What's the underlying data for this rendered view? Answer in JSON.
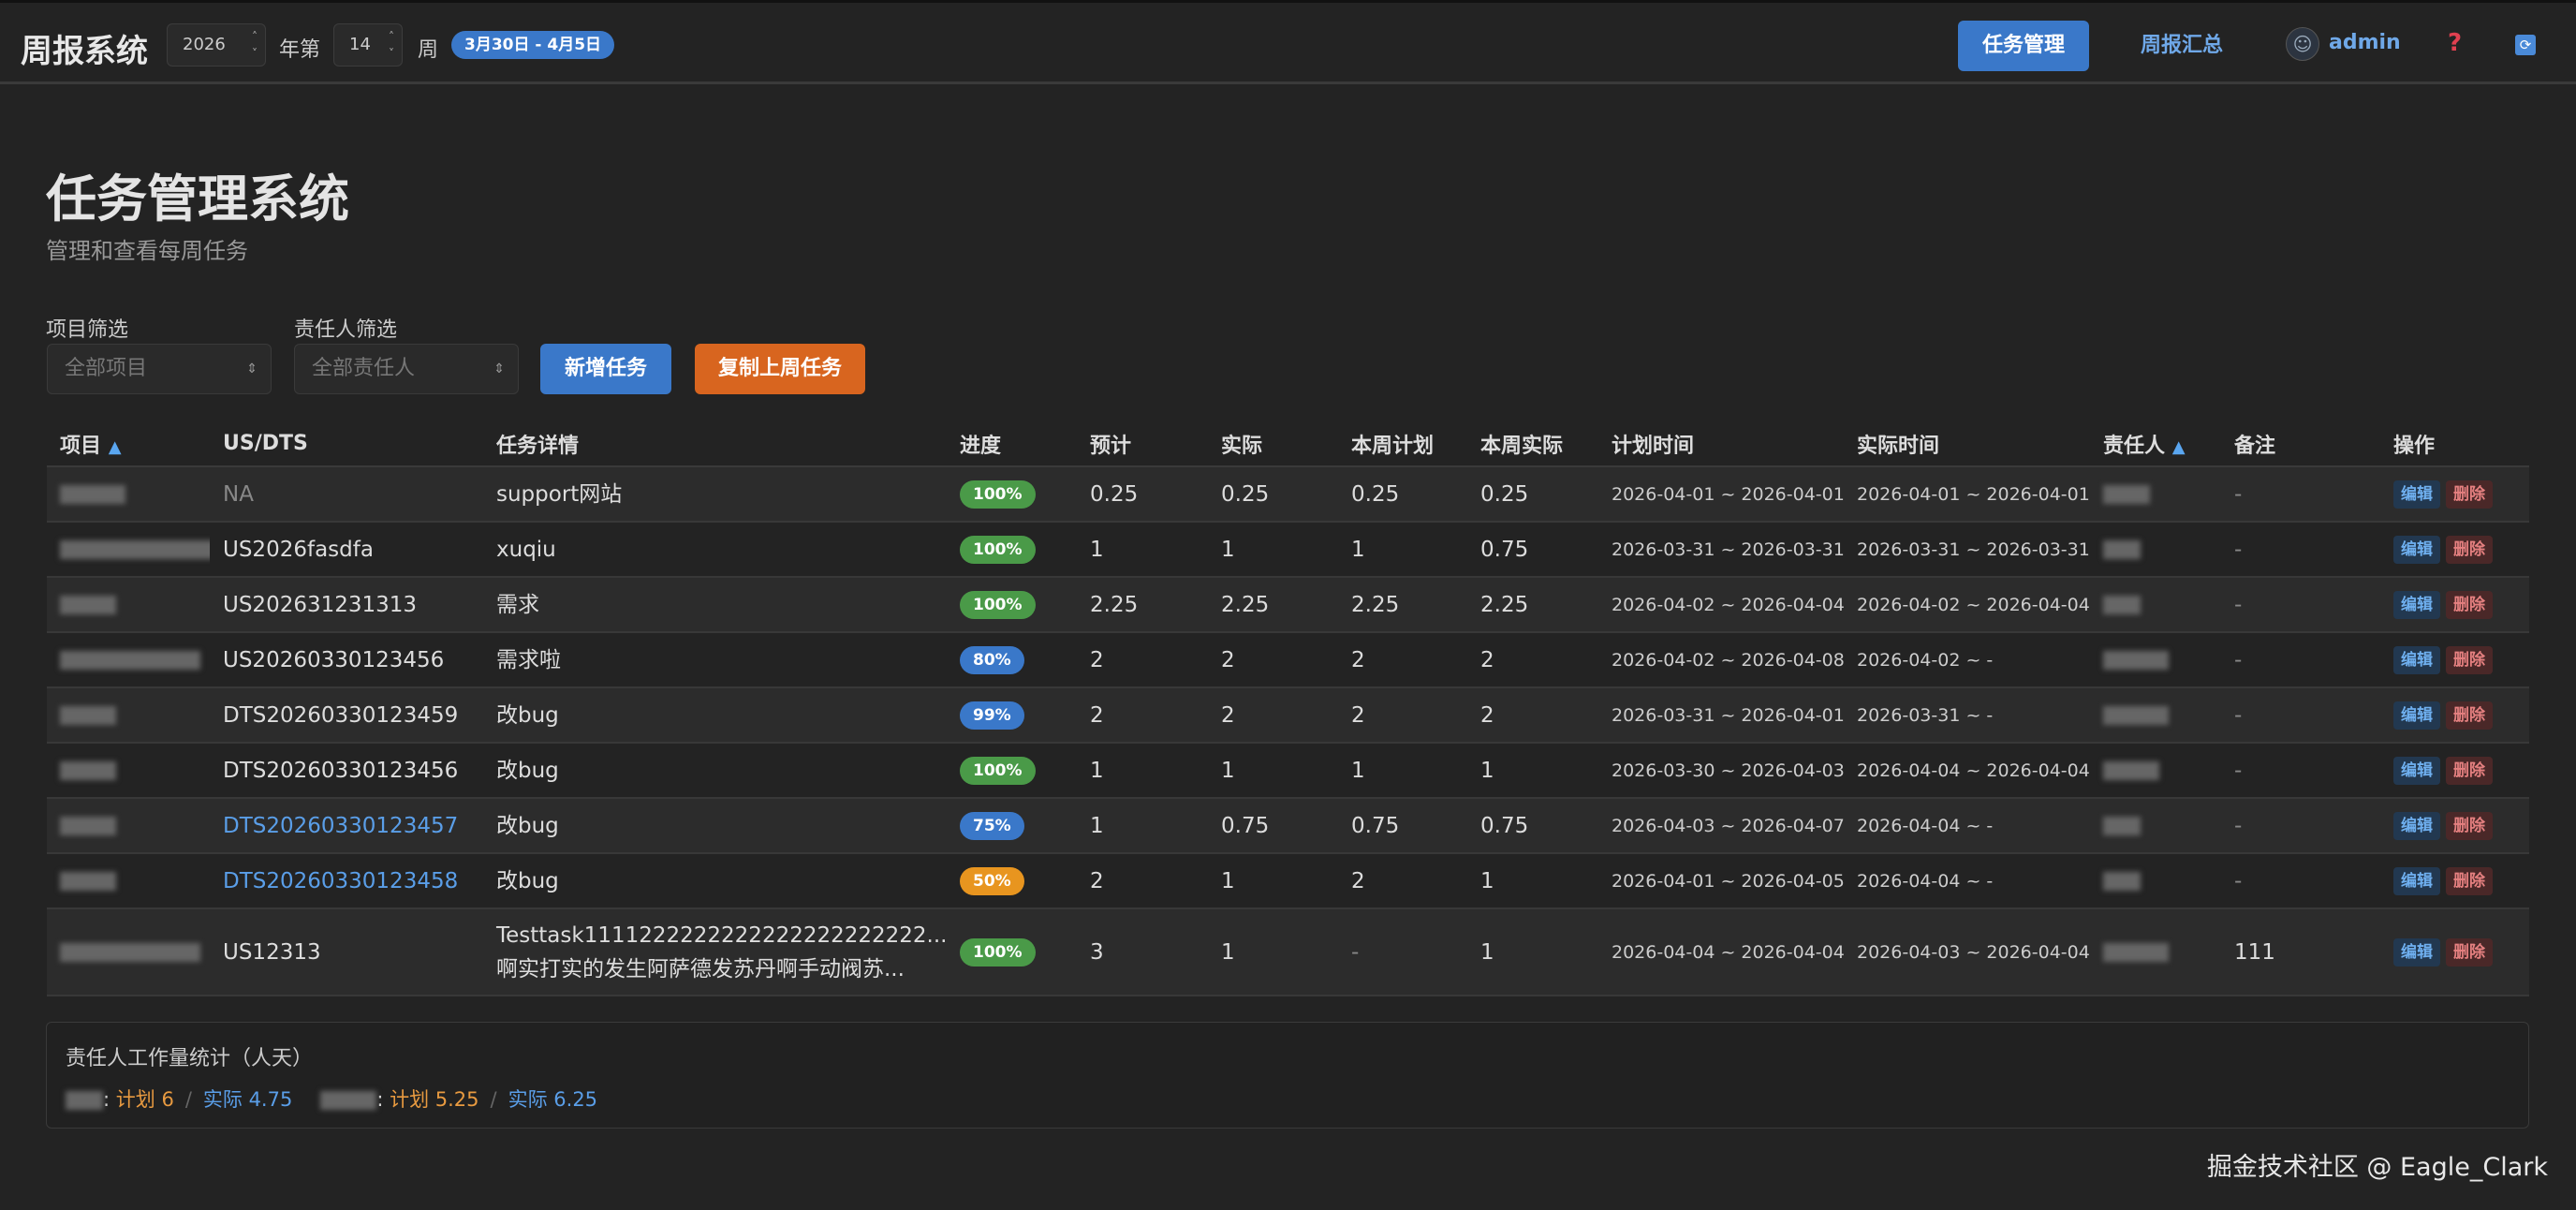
{
  "header": {
    "brand": "周报系统",
    "year": "2026",
    "year_suffix": "年第",
    "week": "14",
    "week_suffix": "周",
    "date_range": "3月30日 - 4月5日",
    "nav": {
      "tasks": "任务管理",
      "summary": "周报汇总"
    },
    "user": "admin",
    "accent": "#3a78c9"
  },
  "page": {
    "title": "任务管理系统",
    "subtitle": "管理和查看每周任务",
    "filters": {
      "project_label": "项目筛选",
      "project_placeholder": "全部项目",
      "owner_label": "责任人筛选",
      "owner_placeholder": "全部责任人"
    },
    "buttons": {
      "add": "新增任务",
      "copy": "复制上周任务"
    }
  },
  "table": {
    "columns": [
      "项目",
      "US/DTS",
      "任务详情",
      "进度",
      "预计",
      "实际",
      "本周计划",
      "本周实际",
      "计划时间",
      "实际时间",
      "责任人",
      "备注",
      "操作"
    ],
    "sort_indicator": "▲",
    "actions": {
      "edit": "编辑",
      "delete": "删除"
    },
    "rows": [
      {
        "id": "NA",
        "detail": "support网站",
        "progress": "100%",
        "est": "0.25",
        "actual": "0.25",
        "wplan": "0.25",
        "wactual": "0.25",
        "plan_time": "2026-04-01 ~ 2026-04-01",
        "actual_time": "2026-04-01 ~ 2026-04-01",
        "note": "-"
      },
      {
        "id": "US2026fasdfa",
        "detail": "xuqiu",
        "progress": "100%",
        "est": "1",
        "actual": "1",
        "wplan": "1",
        "wactual": "0.75",
        "plan_time": "2026-03-31 ~ 2026-03-31",
        "actual_time": "2026-03-31 ~ 2026-03-31",
        "note": "-"
      },
      {
        "id": "US202631231313",
        "detail": "需求",
        "progress": "100%",
        "est": "2.25",
        "actual": "2.25",
        "wplan": "2.25",
        "wactual": "2.25",
        "plan_time": "2026-04-02 ~ 2026-04-04",
        "actual_time": "2026-04-02 ~ 2026-04-04",
        "note": "-"
      },
      {
        "id": "US20260330123456",
        "detail": "需求啦",
        "progress": "80%",
        "est": "2",
        "actual": "2",
        "wplan": "2",
        "wactual": "2",
        "plan_time": "2026-04-02 ~ 2026-04-08",
        "actual_time": "2026-04-02 ~ -",
        "note": "-"
      },
      {
        "id": "DTS20260330123459",
        "detail": "改bug",
        "progress": "99%",
        "est": "2",
        "actual": "2",
        "wplan": "2",
        "wactual": "2",
        "plan_time": "2026-03-31 ~ 2026-04-01",
        "actual_time": "2026-03-31 ~ -",
        "note": "-"
      },
      {
        "id": "DTS20260330123456",
        "detail": "改bug",
        "progress": "100%",
        "est": "1",
        "actual": "1",
        "wplan": "1",
        "wactual": "1",
        "plan_time": "2026-03-30 ~ 2026-04-03",
        "actual_time": "2026-04-04 ~ 2026-04-04",
        "note": "-"
      },
      {
        "id": "DTS20260330123457",
        "detail": "改bug",
        "progress": "75%",
        "est": "1",
        "actual": "0.75",
        "wplan": "0.75",
        "wactual": "0.75",
        "plan_time": "2026-04-03 ~ 2026-04-07",
        "actual_time": "2026-04-04 ~ -",
        "note": "-"
      },
      {
        "id": "DTS20260330123458",
        "detail": "改bug",
        "progress": "50%",
        "est": "2",
        "actual": "1",
        "wplan": "2",
        "wactual": "1",
        "plan_time": "2026-04-01 ~ 2026-04-05",
        "actual_time": "2026-04-04 ~ -",
        "note": "-"
      },
      {
        "id": "US12313",
        "detail": "Testtask1111222222222222222222222...",
        "detail2": "啊实打实的发生阿萨德发苏丹啊手动阀苏...",
        "progress": "100%",
        "est": "3",
        "actual": "1",
        "wplan": "-",
        "wactual": "1",
        "plan_time": "2026-04-04 ~ 2026-04-04",
        "actual_time": "2026-04-03 ~ 2026-04-04",
        "note": "111"
      }
    ]
  },
  "stats": {
    "title": "责任人工作量统计（人天）",
    "items": [
      {
        "plan": "计划 6",
        "actual": "实际 4.75"
      },
      {
        "plan": "计划 5.25",
        "actual": "实际 6.25"
      }
    ],
    "separator": "/"
  },
  "watermark": "掘金技术社区 @ Eagle_Clark",
  "colors": {
    "green": "#4a9a48",
    "blue": "#3a78c9",
    "orange": "#e8951f",
    "link": "#5a9ee8"
  }
}
